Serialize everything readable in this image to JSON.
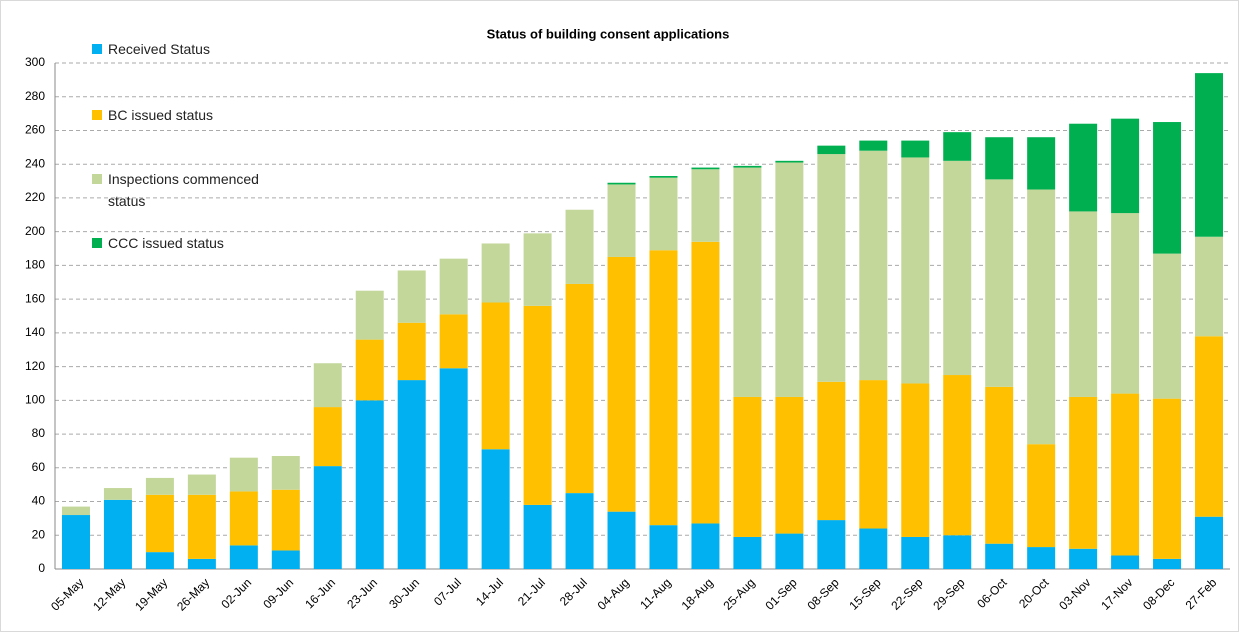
{
  "chart_data": {
    "type": "stacked_bar",
    "title": "Status of building consent applications",
    "categories": [
      "05-May",
      "12-May",
      "19-May",
      "26-May",
      "02-Jun",
      "09-Jun",
      "16-Jun",
      "23-Jun",
      "30-Jun",
      "07-Jul",
      "14-Jul",
      "21-Jul",
      "28-Jul",
      "04-Aug",
      "11-Aug",
      "18-Aug",
      "25-Aug",
      "01-Sep",
      "08-Sep",
      "15-Sep",
      "22-Sep",
      "29-Sep",
      "06-Oct",
      "20-Oct",
      "03-Nov",
      "17-Nov",
      "08-Dec",
      "27-Feb"
    ],
    "series": [
      {
        "name": "Received Status",
        "color": "#00b0f0",
        "values": [
          32,
          41,
          10,
          6,
          14,
          11,
          61,
          100,
          112,
          119,
          71,
          38,
          45,
          34,
          26,
          27,
          19,
          21,
          29,
          24,
          19,
          20,
          15,
          13,
          12,
          8,
          6,
          31
        ]
      },
      {
        "name": "BC issued status",
        "color": "#ffc000",
        "values": [
          0,
          0,
          34,
          38,
          32,
          36,
          35,
          36,
          34,
          32,
          87,
          118,
          124,
          151,
          163,
          167,
          83,
          81,
          82,
          88,
          91,
          95,
          93,
          61,
          90,
          96,
          95,
          107
        ]
      },
      {
        "name": "Inspections commenced status",
        "color": "#c4d79b",
        "values": [
          5,
          7,
          10,
          12,
          20,
          20,
          26,
          29,
          31,
          33,
          35,
          43,
          44,
          43,
          43,
          43,
          136,
          139,
          135,
          136,
          134,
          127,
          123,
          151,
          110,
          107,
          86,
          59
        ]
      },
      {
        "name": "CCC issued status",
        "color": "#00b050",
        "values": [
          0,
          0,
          0,
          0,
          0,
          0,
          0,
          0,
          0,
          0,
          0,
          0,
          0,
          1,
          1,
          1,
          1,
          1,
          5,
          6,
          10,
          17,
          25,
          31,
          52,
          56,
          78,
          97
        ]
      }
    ],
    "ylim": [
      0,
      300
    ],
    "yticks": [
      0,
      20,
      40,
      60,
      80,
      100,
      120,
      140,
      160,
      180,
      200,
      220,
      240,
      260,
      280,
      300
    ],
    "grid": true
  }
}
